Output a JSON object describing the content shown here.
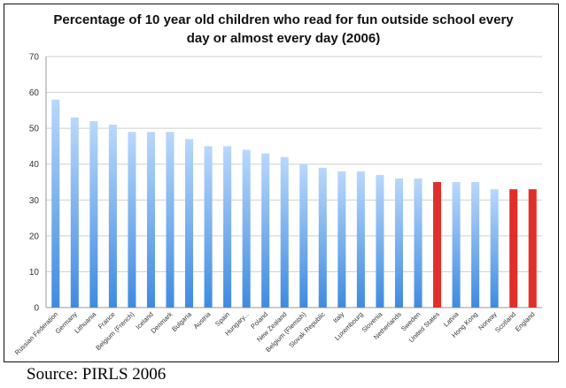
{
  "chart_data": {
    "type": "bar",
    "title_lines": [
      "Percentage of 10 year old children who read for fun outside school every",
      "day or almost every day (2006)"
    ],
    "categories": [
      "Russian Federation",
      "Germany",
      "Lithuania",
      "France",
      "Belgium (French)",
      "Iceland",
      "Denmark",
      "Bulgaria",
      "Austria",
      "Spain",
      "Hungary...",
      "Poland",
      "New Zealand",
      "Belgium (Flemish)",
      "Slovak Republic",
      "Italy",
      "Luxembourg",
      "Slovenia",
      "Netherlands",
      "Sweden",
      "United States",
      "Latvia",
      "Hong Kong",
      "Norway",
      "Scotland",
      "England"
    ],
    "values": [
      58,
      53,
      52,
      51,
      49,
      49,
      49,
      47,
      45,
      45,
      44,
      43,
      42,
      40,
      39,
      38,
      38,
      37,
      36,
      36,
      35,
      35,
      35,
      33,
      33,
      33
    ],
    "highlighted": [
      "United States",
      "Scotland",
      "England"
    ],
    "ylim": [
      0,
      70
    ],
    "yticks": [
      0,
      10,
      20,
      30,
      40,
      50,
      60,
      70
    ],
    "xlabel": "",
    "ylabel": "",
    "grid": true,
    "colors": {
      "bar_top": "#b9d8fb",
      "bar_bottom": "#3f8bdf",
      "highlight": "#e0302a",
      "grid": "#cfcfcf",
      "axis": "#9a9a9a"
    }
  },
  "source": "Source: PIRLS 2006"
}
